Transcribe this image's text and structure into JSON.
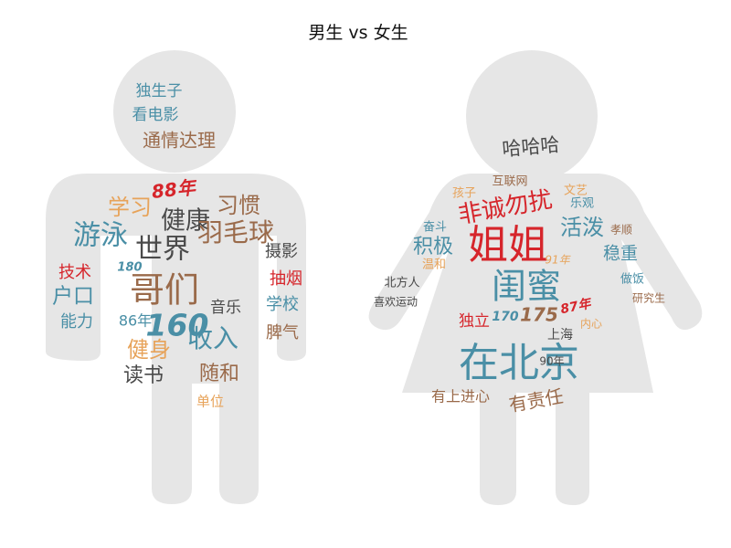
{
  "chart_data": {
    "type": "wordcloud",
    "title": "男生 vs 女生",
    "colors": {
      "teal": "#4a8fa6",
      "brown": "#9a6a4a",
      "dark": "#4a4a4a",
      "orange": "#e7a35a",
      "red": "#d6252b",
      "silhouette": "#e6e6e6"
    },
    "panels": [
      {
        "name": "male",
        "words": [
          {
            "text": "独生子",
            "color": "teal"
          },
          {
            "text": "看电影",
            "color": "teal"
          },
          {
            "text": "通情达理",
            "color": "brown"
          },
          {
            "text": "88年",
            "color": "red"
          },
          {
            "text": "学习",
            "color": "orange"
          },
          {
            "text": "习惯",
            "color": "brown"
          },
          {
            "text": "健康",
            "color": "dark"
          },
          {
            "text": "游泳",
            "color": "teal"
          },
          {
            "text": "世界",
            "color": "dark"
          },
          {
            "text": "羽毛球",
            "color": "brown"
          },
          {
            "text": "摄影",
            "color": "dark"
          },
          {
            "text": "技术",
            "color": "red"
          },
          {
            "text": "180",
            "color": "teal"
          },
          {
            "text": "哥们",
            "color": "brown"
          },
          {
            "text": "抽烟",
            "color": "red"
          },
          {
            "text": "户口",
            "color": "teal"
          },
          {
            "text": "学校",
            "color": "teal"
          },
          {
            "text": "能力",
            "color": "teal"
          },
          {
            "text": "音乐",
            "color": "dark"
          },
          {
            "text": "86年",
            "color": "teal"
          },
          {
            "text": "160",
            "color": "teal"
          },
          {
            "text": "脾气",
            "color": "brown"
          },
          {
            "text": "健身",
            "color": "orange"
          },
          {
            "text": "收入",
            "color": "teal"
          },
          {
            "text": "读书",
            "color": "dark"
          },
          {
            "text": "随和",
            "color": "brown"
          },
          {
            "text": "单位",
            "color": "orange"
          }
        ]
      },
      {
        "name": "female",
        "words": [
          {
            "text": "哈哈哈",
            "color": "dark"
          },
          {
            "text": "互联网",
            "color": "brown"
          },
          {
            "text": "文艺",
            "color": "orange"
          },
          {
            "text": "孩子",
            "color": "orange"
          },
          {
            "text": "乐观",
            "color": "teal"
          },
          {
            "text": "非诚勿扰",
            "color": "red"
          },
          {
            "text": "奋斗",
            "color": "teal"
          },
          {
            "text": "姐姐",
            "color": "red"
          },
          {
            "text": "活泼",
            "color": "teal"
          },
          {
            "text": "孝顺",
            "color": "brown"
          },
          {
            "text": "积极",
            "color": "teal"
          },
          {
            "text": "稳重",
            "color": "teal"
          },
          {
            "text": "温和",
            "color": "orange"
          },
          {
            "text": "91年",
            "color": "orange"
          },
          {
            "text": "北方人",
            "color": "dark"
          },
          {
            "text": "闺蜜",
            "color": "teal"
          },
          {
            "text": "做饭",
            "color": "teal"
          },
          {
            "text": "喜欢运动",
            "color": "dark"
          },
          {
            "text": "87年",
            "color": "red"
          },
          {
            "text": "研究生",
            "color": "brown"
          },
          {
            "text": "独立",
            "color": "red"
          },
          {
            "text": "170",
            "color": "teal"
          },
          {
            "text": "175",
            "color": "brown"
          },
          {
            "text": "内心",
            "color": "orange"
          },
          {
            "text": "上海",
            "color": "dark"
          },
          {
            "text": "在北京",
            "color": "teal"
          },
          {
            "text": "90年",
            "color": "dark"
          },
          {
            "text": "有上进心",
            "color": "brown"
          },
          {
            "text": "有责任",
            "color": "brown"
          }
        ]
      }
    ]
  }
}
